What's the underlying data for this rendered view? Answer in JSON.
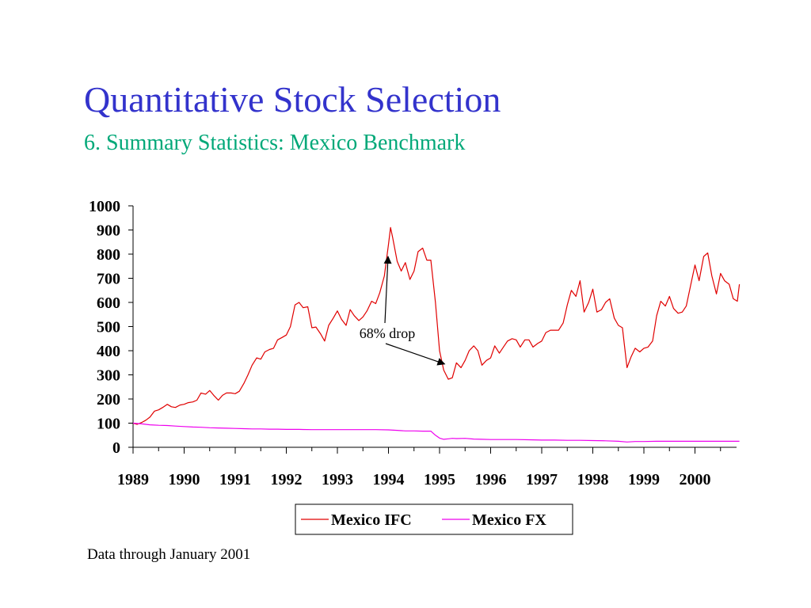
{
  "slide": {
    "title": "Quantitative Stock Selection",
    "subtitle": "6. Summary Statistics: Mexico Benchmark",
    "footnote": "Data through January 2001"
  },
  "colors": {
    "title": "#3333cc",
    "subtitle": "#00a878",
    "ifc_line": "#e00000",
    "fx_line": "#ee00ee"
  },
  "chart_data": {
    "type": "line",
    "title": "",
    "xlabel": "",
    "ylabel": "",
    "ylim": [
      0,
      1000
    ],
    "xlim": [
      1989.0,
      2000.87
    ],
    "y_ticks": [
      "0",
      "100",
      "200",
      "300",
      "400",
      "500",
      "600",
      "700",
      "800",
      "900",
      "1000"
    ],
    "x_ticks": [
      "1989",
      "1990",
      "1991",
      "1992",
      "1993",
      "1994",
      "1995",
      "1996",
      "1997",
      "1998",
      "1999",
      "2000"
    ],
    "grid": false,
    "legend_position": "bottom-right",
    "annotation": {
      "text": "68% drop",
      "from_x": 1994.0,
      "from_y": 790,
      "to_x": 1995.1,
      "to_y": 345
    },
    "series": [
      {
        "name": "Mexico IFC",
        "color": "#e00000",
        "points": [
          [
            1989.0,
            100
          ],
          [
            1989.08,
            95
          ],
          [
            1989.17,
            103
          ],
          [
            1989.25,
            112
          ],
          [
            1989.33,
            125
          ],
          [
            1989.42,
            150
          ],
          [
            1989.5,
            155
          ],
          [
            1989.58,
            165
          ],
          [
            1989.67,
            178
          ],
          [
            1989.75,
            168
          ],
          [
            1989.83,
            165
          ],
          [
            1989.92,
            175
          ],
          [
            1990.0,
            178
          ],
          [
            1990.08,
            185
          ],
          [
            1990.17,
            188
          ],
          [
            1990.25,
            195
          ],
          [
            1990.33,
            225
          ],
          [
            1990.42,
            220
          ],
          [
            1990.5,
            235
          ],
          [
            1990.58,
            215
          ],
          [
            1990.67,
            195
          ],
          [
            1990.75,
            215
          ],
          [
            1990.83,
            225
          ],
          [
            1990.92,
            225
          ],
          [
            1991.0,
            222
          ],
          [
            1991.08,
            232
          ],
          [
            1991.17,
            265
          ],
          [
            1991.25,
            300
          ],
          [
            1991.33,
            340
          ],
          [
            1991.42,
            370
          ],
          [
            1991.5,
            365
          ],
          [
            1991.58,
            395
          ],
          [
            1991.67,
            405
          ],
          [
            1991.75,
            410
          ],
          [
            1991.83,
            445
          ],
          [
            1991.92,
            455
          ],
          [
            1992.0,
            465
          ],
          [
            1992.08,
            500
          ],
          [
            1992.17,
            590
          ],
          [
            1992.25,
            600
          ],
          [
            1992.33,
            578
          ],
          [
            1992.42,
            582
          ],
          [
            1992.5,
            495
          ],
          [
            1992.58,
            498
          ],
          [
            1992.67,
            470
          ],
          [
            1992.75,
            440
          ],
          [
            1992.83,
            505
          ],
          [
            1992.92,
            535
          ],
          [
            1993.0,
            565
          ],
          [
            1993.08,
            530
          ],
          [
            1993.17,
            505
          ],
          [
            1993.25,
            570
          ],
          [
            1993.33,
            545
          ],
          [
            1993.42,
            525
          ],
          [
            1993.5,
            540
          ],
          [
            1993.58,
            565
          ],
          [
            1993.67,
            605
          ],
          [
            1993.75,
            595
          ],
          [
            1993.83,
            640
          ],
          [
            1993.92,
            710
          ],
          [
            1994.0,
            840
          ],
          [
            1994.04,
            910
          ],
          [
            1994.08,
            870
          ],
          [
            1994.17,
            770
          ],
          [
            1994.25,
            730
          ],
          [
            1994.33,
            765
          ],
          [
            1994.42,
            695
          ],
          [
            1994.5,
            730
          ],
          [
            1994.58,
            810
          ],
          [
            1994.67,
            825
          ],
          [
            1994.75,
            775
          ],
          [
            1994.83,
            775
          ],
          [
            1994.92,
            600
          ],
          [
            1995.0,
            400
          ],
          [
            1995.08,
            320
          ],
          [
            1995.17,
            282
          ],
          [
            1995.25,
            288
          ],
          [
            1995.33,
            350
          ],
          [
            1995.42,
            330
          ],
          [
            1995.5,
            360
          ],
          [
            1995.58,
            400
          ],
          [
            1995.67,
            420
          ],
          [
            1995.75,
            400
          ],
          [
            1995.83,
            340
          ],
          [
            1995.92,
            360
          ],
          [
            1996.0,
            370
          ],
          [
            1996.08,
            420
          ],
          [
            1996.17,
            390
          ],
          [
            1996.25,
            415
          ],
          [
            1996.33,
            440
          ],
          [
            1996.42,
            450
          ],
          [
            1996.5,
            445
          ],
          [
            1996.58,
            415
          ],
          [
            1996.67,
            445
          ],
          [
            1996.75,
            445
          ],
          [
            1996.83,
            415
          ],
          [
            1996.92,
            430
          ],
          [
            1997.0,
            440
          ],
          [
            1997.08,
            475
          ],
          [
            1997.17,
            485
          ],
          [
            1997.25,
            485
          ],
          [
            1997.33,
            485
          ],
          [
            1997.42,
            515
          ],
          [
            1997.5,
            590
          ],
          [
            1997.58,
            650
          ],
          [
            1997.67,
            625
          ],
          [
            1997.75,
            690
          ],
          [
            1997.83,
            560
          ],
          [
            1997.92,
            600
          ],
          [
            1998.0,
            655
          ],
          [
            1998.08,
            560
          ],
          [
            1998.17,
            570
          ],
          [
            1998.25,
            600
          ],
          [
            1998.33,
            615
          ],
          [
            1998.42,
            535
          ],
          [
            1998.5,
            505
          ],
          [
            1998.58,
            495
          ],
          [
            1998.67,
            330
          ],
          [
            1998.75,
            375
          ],
          [
            1998.83,
            410
          ],
          [
            1998.92,
            395
          ],
          [
            1999.0,
            410
          ],
          [
            1999.08,
            415
          ],
          [
            1999.17,
            440
          ],
          [
            1999.25,
            545
          ],
          [
            1999.33,
            605
          ],
          [
            1999.42,
            585
          ],
          [
            1999.5,
            625
          ],
          [
            1999.58,
            575
          ],
          [
            1999.67,
            555
          ],
          [
            1999.75,
            560
          ],
          [
            1999.83,
            585
          ],
          [
            1999.92,
            675
          ],
          [
            2000.0,
            755
          ],
          [
            2000.08,
            690
          ],
          [
            2000.17,
            790
          ],
          [
            2000.25,
            805
          ],
          [
            2000.33,
            710
          ],
          [
            2000.42,
            635
          ],
          [
            2000.5,
            720
          ],
          [
            2000.58,
            690
          ],
          [
            2000.67,
            675
          ],
          [
            2000.75,
            615
          ],
          [
            2000.83,
            605
          ],
          [
            2000.87,
            675
          ]
        ]
      },
      {
        "name": "Mexico FX",
        "color": "#ee00ee",
        "points": [
          [
            1989.0,
            100
          ],
          [
            1989.17,
            97
          ],
          [
            1989.33,
            93
          ],
          [
            1989.5,
            91
          ],
          [
            1989.67,
            90
          ],
          [
            1989.83,
            88
          ],
          [
            1990.0,
            86
          ],
          [
            1990.17,
            84
          ],
          [
            1990.33,
            83
          ],
          [
            1990.5,
            81
          ],
          [
            1990.67,
            80
          ],
          [
            1990.83,
            79
          ],
          [
            1991.0,
            78
          ],
          [
            1991.17,
            77
          ],
          [
            1991.33,
            76
          ],
          [
            1991.5,
            76
          ],
          [
            1991.67,
            75
          ],
          [
            1991.83,
            75
          ],
          [
            1992.0,
            74
          ],
          [
            1992.25,
            74
          ],
          [
            1992.5,
            73
          ],
          [
            1992.75,
            73
          ],
          [
            1993.0,
            73
          ],
          [
            1993.25,
            73
          ],
          [
            1993.5,
            73
          ],
          [
            1993.75,
            73
          ],
          [
            1994.0,
            72
          ],
          [
            1994.17,
            70
          ],
          [
            1994.33,
            68
          ],
          [
            1994.5,
            68
          ],
          [
            1994.67,
            67
          ],
          [
            1994.83,
            67
          ],
          [
            1994.92,
            50
          ],
          [
            1995.0,
            38
          ],
          [
            1995.08,
            33
          ],
          [
            1995.17,
            35
          ],
          [
            1995.25,
            37
          ],
          [
            1995.33,
            36
          ],
          [
            1995.5,
            37
          ],
          [
            1995.67,
            34
          ],
          [
            1995.83,
            33
          ],
          [
            1996.0,
            32
          ],
          [
            1996.25,
            32
          ],
          [
            1996.5,
            32
          ],
          [
            1996.75,
            31
          ],
          [
            1997.0,
            30
          ],
          [
            1997.25,
            30
          ],
          [
            1997.5,
            29
          ],
          [
            1997.75,
            29
          ],
          [
            1998.0,
            28
          ],
          [
            1998.25,
            27
          ],
          [
            1998.5,
            25
          ],
          [
            1998.67,
            22
          ],
          [
            1998.83,
            24
          ],
          [
            1999.0,
            24
          ],
          [
            1999.25,
            25
          ],
          [
            1999.5,
            25
          ],
          [
            1999.75,
            25
          ],
          [
            2000.0,
            25
          ],
          [
            2000.25,
            25
          ],
          [
            2000.5,
            25
          ],
          [
            2000.87,
            25
          ]
        ]
      }
    ]
  }
}
